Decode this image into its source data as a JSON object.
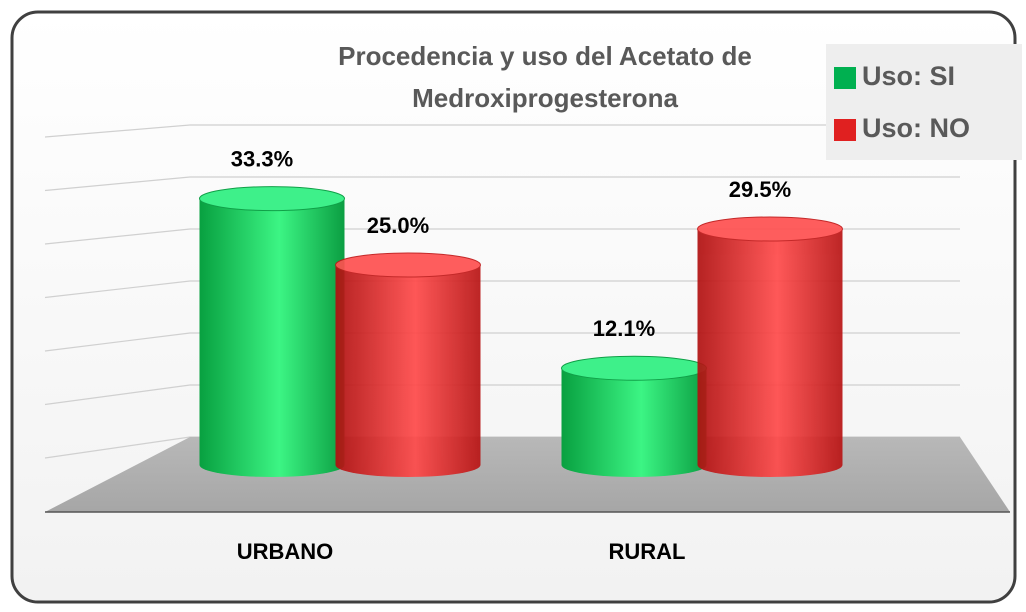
{
  "chart_data": {
    "type": "bar3d",
    "title": "Procedencia y uso del Acetato de Medroxiprogesterona",
    "categories": [
      "URBANO",
      "RURAL"
    ],
    "series": [
      {
        "name": "Uso: SI",
        "color": "#00b050",
        "values": [
          33.3,
          12.1
        ],
        "value_labels": [
          "33.3%",
          "12.1%"
        ]
      },
      {
        "name": "Uso: NO",
        "color": "#e02020",
        "values": [
          25.0,
          29.5
        ],
        "value_labels": [
          "25.0%",
          "29.5%"
        ]
      }
    ],
    "ylim": [
      0,
      40
    ],
    "legend": "top-right"
  }
}
